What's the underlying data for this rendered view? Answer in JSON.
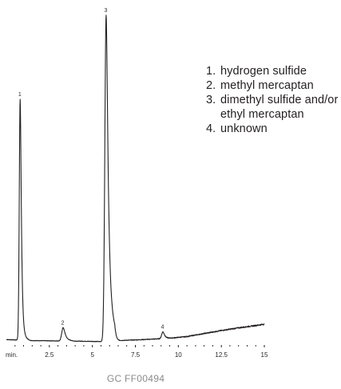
{
  "chart_data": {
    "type": "line",
    "title": "",
    "xlabel": "",
    "ylabel": "",
    "xlim": [
      0,
      15
    ],
    "ylim": [
      0,
      100
    ],
    "grid": false,
    "x_axis": {
      "unit_label": "min.",
      "ticks": [
        2.5,
        5,
        7.5,
        10,
        12.5,
        15
      ],
      "tick_labels": [
        "2.5",
        "5",
        "7.5",
        "10",
        "12.5",
        "15"
      ],
      "minor_step": 0.5
    },
    "peaks": [
      {
        "label": "1",
        "time": 0.8,
        "height": 72
      },
      {
        "label": "2",
        "time": 3.3,
        "height": 4
      },
      {
        "label": "3",
        "time": 5.8,
        "height": 97.5
      },
      {
        "label": "4",
        "time": 9.1,
        "height": 2
      }
    ],
    "baseline": [
      [
        0.0,
        0.9
      ],
      [
        1.5,
        0.6
      ],
      [
        3.0,
        0.5
      ],
      [
        4.5,
        0.4
      ],
      [
        5.5,
        0.3
      ],
      [
        6.5,
        0.6
      ],
      [
        8.0,
        0.9
      ],
      [
        9.5,
        1.3
      ],
      [
        10.5,
        1.8
      ],
      [
        11.5,
        2.7
      ],
      [
        12.5,
        3.6
      ],
      [
        13.5,
        4.4
      ],
      [
        14.5,
        5.1
      ],
      [
        15.0,
        5.5
      ]
    ],
    "legend_position": "top-right",
    "legend": [
      {
        "number": "1.",
        "text": "hydrogen sulfide"
      },
      {
        "number": "2.",
        "text": "methyl mercaptan"
      },
      {
        "number": "3.",
        "text": "dimethyl sulfide and/or ethyl mercaptan"
      },
      {
        "number": "4.",
        "text": "unknown"
      }
    ],
    "colors": {
      "trace": "#231f20",
      "axis": "#231f20",
      "footer": "#8a8a8a"
    }
  },
  "footer_code": "GC  FF00494"
}
